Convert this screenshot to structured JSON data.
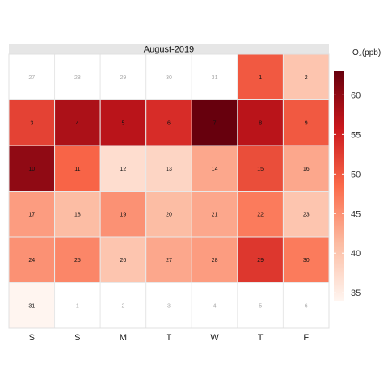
{
  "chart_data": {
    "type": "heatmap",
    "title": "August-2019",
    "weekdays": [
      "S",
      "S",
      "M",
      "T",
      "W",
      "T",
      "F"
    ],
    "legend_title": "O₃(ppb)",
    "legend_ticks": [
      35,
      40,
      45,
      50,
      55,
      60
    ],
    "value_range": [
      34,
      63
    ],
    "colors": {
      "low": "#fff5f0",
      "mid1": "#fcbba1",
      "mid2": "#fb6a4a",
      "mid3": "#cb181d",
      "high": "#67000d",
      "empty": "#ffffff",
      "grid": "#e8e8e8",
      "strip": "#e6e6e6"
    },
    "rows": [
      [
        {
          "label": "27",
          "value": null
        },
        {
          "label": "28",
          "value": null
        },
        {
          "label": "29",
          "value": null
        },
        {
          "label": "30",
          "value": null
        },
        {
          "label": "31",
          "value": null
        },
        {
          "label": "1",
          "value": 50
        },
        {
          "label": "2",
          "value": 40
        }
      ],
      [
        {
          "label": "3",
          "value": 52
        },
        {
          "label": "4",
          "value": 58
        },
        {
          "label": "5",
          "value": 57
        },
        {
          "label": "6",
          "value": 54
        },
        {
          "label": "7",
          "value": 63
        },
        {
          "label": "8",
          "value": 57
        },
        {
          "label": "9",
          "value": 50
        }
      ],
      [
        {
          "label": "10",
          "value": 60
        },
        {
          "label": "11",
          "value": 49
        },
        {
          "label": "12",
          "value": 37
        },
        {
          "label": "13",
          "value": 38
        },
        {
          "label": "14",
          "value": 43
        },
        {
          "label": "15",
          "value": 51
        },
        {
          "label": "16",
          "value": 43
        }
      ],
      [
        {
          "label": "17",
          "value": 44
        },
        {
          "label": "18",
          "value": 41
        },
        {
          "label": "19",
          "value": 45
        },
        {
          "label": "20",
          "value": 41
        },
        {
          "label": "21",
          "value": 43
        },
        {
          "label": "22",
          "value": 47
        },
        {
          "label": "23",
          "value": 40
        }
      ],
      [
        {
          "label": "24",
          "value": 45
        },
        {
          "label": "25",
          "value": 46
        },
        {
          "label": "26",
          "value": 40
        },
        {
          "label": "27",
          "value": 43
        },
        {
          "label": "28",
          "value": 44
        },
        {
          "label": "29",
          "value": 53
        },
        {
          "label": "30",
          "value": 47
        }
      ],
      [
        {
          "label": "31",
          "value": 34
        },
        {
          "label": "1",
          "value": null
        },
        {
          "label": "2",
          "value": null
        },
        {
          "label": "3",
          "value": null
        },
        {
          "label": "4",
          "value": null
        },
        {
          "label": "5",
          "value": null
        },
        {
          "label": "6",
          "value": null
        }
      ]
    ]
  }
}
